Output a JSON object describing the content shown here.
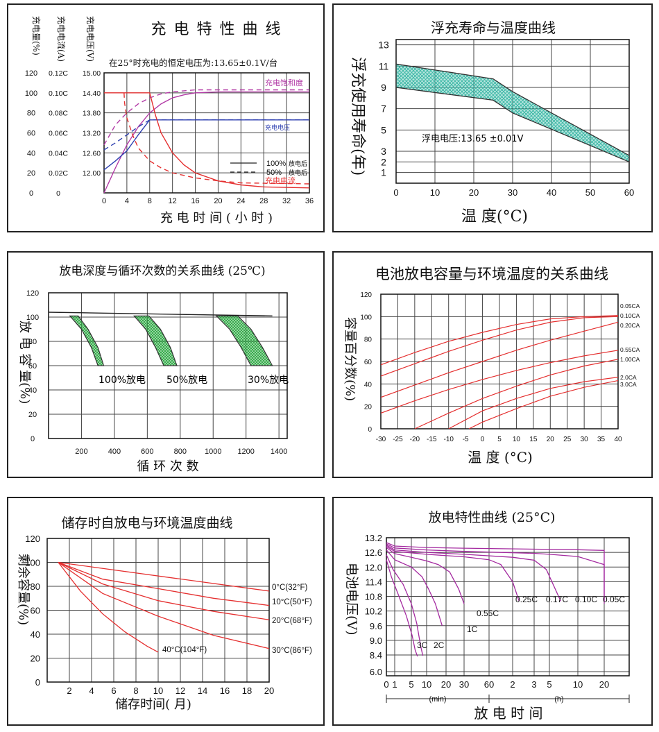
{
  "chart_data": [
    {
      "id": "charge",
      "type": "line",
      "title": "充  电  特  性  曲  线",
      "subtitle": "在25°时充电的恒定电压为:13.65±0.1V/台",
      "xlabel": "充  电  时  间  ( 小  时 )",
      "ylabels": [
        "充电量(%)",
        "充电电流(A)",
        "充电电压(V)"
      ],
      "x_ticks": [
        "0",
        "4",
        "8",
        "12",
        "16",
        "20",
        "24",
        "28",
        "32",
        "36"
      ],
      "y_ticks_quantity": [
        "120",
        "100",
        "80",
        "60",
        "40",
        "20",
        "0"
      ],
      "y_ticks_current": [
        "0.12C",
        "0.10C",
        "0.08C",
        "0.06C",
        "0.04C",
        "0.02C",
        "0"
      ],
      "y_ticks_voltage": [
        "15.00",
        "14.40",
        "13.80",
        "13.20",
        "12.60",
        "12.00",
        ""
      ],
      "xlim": [
        0,
        36
      ],
      "ylim": [
        0,
        120
      ],
      "series_labels": [
        "充电饱和度",
        "充电电压",
        "充电电流"
      ],
      "legend": [
        {
          "label": "100%",
          "note": "放电后",
          "style": "solid"
        },
        {
          "label": "50%",
          "note": "放电后",
          "style": "dashed"
        }
      ],
      "series": [
        {
          "label_index": 0,
          "color": "#b23aa6",
          "style": "solid",
          "x": [
            0,
            2,
            4,
            6,
            8,
            10,
            12,
            14,
            16,
            20,
            24,
            28,
            36
          ],
          "y": [
            0,
            25,
            48,
            66,
            80,
            89,
            95,
            98,
            100,
            101,
            101,
            101,
            101
          ]
        },
        {
          "label_index": 0,
          "color": "#b23aa6",
          "style": "dashed",
          "x": [
            0,
            1,
            2,
            4,
            6,
            8,
            10,
            12,
            14,
            16,
            20,
            24,
            36
          ],
          "y": [
            48,
            58,
            68,
            80,
            89,
            95,
            99,
            101,
            102,
            103,
            103,
            103,
            103
          ]
        },
        {
          "label_index": 1,
          "color": "#2d3fb0",
          "style": "solid",
          "x": [
            0,
            2,
            4,
            6,
            8,
            36
          ],
          "y": [
            23,
            32,
            42,
            58,
            73,
            73
          ]
        },
        {
          "label_index": 1,
          "color": "#2d3fb0",
          "style": "dashed",
          "x": [
            0,
            2,
            4,
            6,
            8,
            36
          ],
          "y": [
            43,
            50,
            58,
            66,
            73,
            73
          ]
        },
        {
          "label_index": 2,
          "color": "#e53030",
          "style": "solid",
          "x": [
            0,
            8,
            9,
            10,
            12,
            14,
            16,
            20,
            24,
            28,
            36
          ],
          "y": [
            100,
            100,
            78,
            60,
            40,
            28,
            20,
            12,
            8,
            6,
            5
          ]
        },
        {
          "label_index": 2,
          "color": "#e53030",
          "style": "dashed",
          "x": [
            3.5,
            3.6,
            4,
            5,
            6,
            8,
            10,
            12,
            16,
            20,
            24,
            36
          ],
          "y": [
            100,
            90,
            75,
            58,
            45,
            32,
            25,
            20,
            15,
            12,
            10,
            9
          ]
        }
      ]
    },
    {
      "id": "float-life",
      "type": "area",
      "title": "浮充寿命与温度曲线",
      "xlabel": "温  度(°C)",
      "ylabel": "浮充使用寿命(年)",
      "annotation": "浮电电压:13.65  ±0.01V",
      "x_ticks": [
        "0",
        "10",
        "20",
        "30",
        "40",
        "50",
        "60"
      ],
      "y_ticks": [
        {
          "label": "13",
          "value": 13
        },
        {
          "label": "11",
          "value": 11
        },
        {
          "label": "9",
          "value": 9
        },
        {
          "label": "7",
          "value": 7
        },
        {
          "label": "5",
          "value": 5
        },
        {
          "label": "3",
          "value": 3
        },
        {
          "label": "2",
          "value": 2
        },
        {
          "label": "1",
          "value": 1
        }
      ],
      "xlim": [
        0,
        60
      ],
      "ylim": [
        0,
        13.5
      ],
      "upper": {
        "x": [
          0,
          25,
          30,
          60
        ],
        "y": [
          11.2,
          9.8,
          8.6,
          2.6
        ]
      },
      "lower": {
        "x": [
          0,
          25,
          30,
          60
        ],
        "y": [
          9.0,
          7.8,
          6.6,
          2.0
        ]
      },
      "color": "#3cb8a6"
    },
    {
      "id": "cycle-life",
      "type": "area",
      "title": "放电深度与循环次数的关系曲线 (25℃)",
      "xlabel": "循  环  次  数",
      "ylabel": "放  电  容  量(%)",
      "x_ticks": [
        "200",
        "400",
        "600",
        "800",
        "1000",
        "1200",
        "1400"
      ],
      "y_ticks": [
        "120",
        "100",
        "80",
        "60",
        "40",
        "20",
        "0"
      ],
      "xlim": [
        0,
        1450
      ],
      "ylim": [
        0,
        120
      ],
      "bands": [
        {
          "label": "100%放电",
          "left": {
            "x": [
              130,
              200,
              260,
              300
            ],
            "y": [
              101,
              90,
              75,
              60
            ]
          },
          "right": {
            "x": [
              180,
              240,
              300,
              335
            ],
            "y": [
              101,
              90,
              75,
              60
            ]
          }
        },
        {
          "label": "50%放电",
          "left": {
            "x": [
              520,
              590,
              650,
              700
            ],
            "y": [
              101,
              90,
              75,
              60
            ]
          },
          "right": {
            "x": [
              610,
              680,
              740,
              780
            ],
            "y": [
              101,
              90,
              75,
              60
            ]
          }
        },
        {
          "label": "30%放电",
          "left": {
            "x": [
              1020,
              1100,
              1170,
              1230
            ],
            "y": [
              101,
              90,
              75,
              60
            ]
          },
          "right": {
            "x": [
              1150,
              1230,
              1300,
              1360
            ],
            "y": [
              101,
              90,
              75,
              60
            ]
          }
        }
      ],
      "top_line": {
        "x": [
          0,
          1360
        ],
        "y": [
          104,
          101
        ]
      },
      "color": "#2ea844"
    },
    {
      "id": "capacity-temp",
      "type": "line",
      "title": "电池放电容量与环境温度的关系曲线",
      "xlabel": "温  度  (°C)",
      "ylabel": "容量百分数(%)",
      "x_ticks": [
        "-30",
        "-25",
        "-20",
        "-15",
        "-10",
        "-5",
        "0",
        "5",
        "10",
        "15",
        "20",
        "25",
        "30",
        "35",
        "40"
      ],
      "y_ticks": [
        "120",
        "100",
        "80",
        "60",
        "40",
        "20",
        "0"
      ],
      "xlim": [
        -30,
        40
      ],
      "ylim": [
        0,
        120
      ],
      "series": [
        {
          "name": "0.05CA",
          "x": [
            -30,
            -20,
            -10,
            0,
            10,
            20,
            30,
            40
          ],
          "y": [
            57,
            68,
            78,
            86,
            93,
            98,
            100,
            101
          ]
        },
        {
          "name": "0.10CA",
          "x": [
            -30,
            -20,
            -10,
            0,
            10,
            20,
            30,
            40
          ],
          "y": [
            47,
            58,
            69,
            79,
            88,
            95,
            99,
            100
          ]
        },
        {
          "name": "0.20CA",
          "x": [
            -30,
            -20,
            -10,
            0,
            10,
            20,
            30,
            40
          ],
          "y": [
            28,
            39,
            50,
            60,
            70,
            79,
            87,
            95
          ]
        },
        {
          "name": "0.55CA",
          "x": [
            -30,
            -20,
            -10,
            0,
            10,
            20,
            30,
            40
          ],
          "y": [
            14,
            25,
            35,
            44,
            52,
            59,
            65,
            70
          ]
        },
        {
          "name": "1.00CA",
          "x": [
            -20,
            -10,
            0,
            10,
            20,
            30,
            40
          ],
          "y": [
            0,
            14,
            27,
            38,
            48,
            56,
            62
          ]
        },
        {
          "name": "2.0CA",
          "x": [
            -10,
            0,
            10,
            20,
            30,
            40
          ],
          "y": [
            0,
            16,
            27,
            36,
            42,
            46
          ]
        },
        {
          "name": "3.0CA",
          "x": [
            -4,
            0,
            10,
            20,
            30,
            40
          ],
          "y": [
            0,
            6,
            18,
            29,
            37,
            43
          ]
        }
      ],
      "color": "#e53030"
    },
    {
      "id": "self-discharge",
      "type": "line",
      "title": "储存时自放电与环境温度曲线",
      "xlabel": "储存时间( 月)",
      "ylabel": "剩余容量(%)",
      "x_ticks": [
        "2",
        "4",
        "6",
        "8",
        "10",
        "12",
        "14",
        "16",
        "18",
        "20"
      ],
      "y_ticks": [
        "120",
        "100",
        "80",
        "60",
        "40",
        "20",
        "0"
      ],
      "xlim": [
        0,
        20
      ],
      "ylim": [
        0,
        120
      ],
      "series": [
        {
          "name": "0°C(32°F)",
          "x": [
            1,
            20
          ],
          "y": [
            100,
            76
          ]
        },
        {
          "name": "10°C(50°F)",
          "x": [
            1,
            5,
            10,
            15,
            20
          ],
          "y": [
            100,
            86,
            78,
            70,
            64
          ]
        },
        {
          "name": "20°C(68°F)",
          "x": [
            1,
            5,
            10,
            15,
            20
          ],
          "y": [
            100,
            82,
            68,
            59,
            52
          ]
        },
        {
          "name": "30°C(86°F)",
          "x": [
            1,
            5,
            10,
            15,
            20
          ],
          "y": [
            100,
            74,
            55,
            39,
            28
          ]
        },
        {
          "name": "40°C(104°F)",
          "x": [
            1,
            3,
            5,
            7,
            9,
            10
          ],
          "y": [
            100,
            76,
            57,
            42,
            30,
            25
          ]
        }
      ],
      "color": "#e53030"
    },
    {
      "id": "discharge-char",
      "type": "line",
      "title": "放电特性曲线 (25°C)",
      "xlabel": "放  电  时  间",
      "ylabel": "电池电压(V)",
      "unit_min": "(min)",
      "unit_h": "(h)",
      "x_ticks": [
        "0",
        "1",
        "5",
        "10",
        "20",
        "30",
        "60",
        "2",
        "3",
        "5",
        "10",
        "20"
      ],
      "y_ticks": [
        "13.2",
        "12.6",
        "12.0",
        "11.4",
        "10.8",
        "10.2",
        "9.6",
        "9.0",
        "8.4",
        "6.0"
      ],
      "ylim": [
        6.0,
        13.2
      ],
      "series": [
        {
          "name": "0.05C",
          "x": [
            0,
            1,
            3,
            5,
            8,
            10,
            12,
            14,
            16,
            17.5,
            19.5
          ],
          "y": [
            13.0,
            12.86,
            12.8,
            12.77,
            12.73,
            12.71,
            12.68,
            12.62,
            12.45,
            11.8,
            10.5
          ]
        },
        {
          "name": "0.10C",
          "x": [
            0,
            1,
            3,
            5,
            8,
            9,
            10,
            11,
            11.8,
            12.3
          ],
          "y": [
            12.95,
            12.78,
            12.7,
            12.64,
            12.56,
            12.52,
            12.43,
            12.1,
            11.4,
            10.6
          ]
        },
        {
          "name": "0.17C",
          "x": [
            0,
            1,
            3,
            5,
            7,
            8,
            8.8,
            9.4
          ],
          "y": [
            12.9,
            12.7,
            12.6,
            12.52,
            12.4,
            12.28,
            11.9,
            10.6
          ]
        },
        {
          "name": "0.25C",
          "x": [
            0,
            1,
            3,
            5,
            6,
            6.5,
            7.0,
            7.3
          ],
          "y": [
            12.85,
            12.64,
            12.52,
            12.42,
            12.3,
            12.1,
            11.4,
            10.6
          ]
        },
        {
          "name": "0.55C",
          "x": [
            0,
            1,
            2,
            3,
            3.6,
            4.2,
            4.7,
            5.0
          ],
          "y": [
            12.8,
            12.55,
            12.4,
            12.25,
            12.1,
            11.8,
            11.1,
            10.5
          ]
        },
        {
          "name": "1C",
          "x": [
            0,
            1,
            2,
            2.7,
            3.1,
            3.45,
            3.8
          ],
          "y": [
            12.7,
            12.3,
            12.0,
            11.6,
            11.1,
            10.5,
            9.6
          ]
        },
        {
          "name": "2C",
          "x": [
            0,
            0.8,
            1.5,
            2.0,
            2.35,
            2.6,
            2.75
          ],
          "y": [
            12.5,
            11.9,
            11.3,
            10.5,
            9.7,
            8.8,
            8.3
          ]
        },
        {
          "name": "3C",
          "x": [
            0,
            0.6,
            1.2,
            1.7,
            2.05,
            2.25,
            2.4
          ],
          "y": [
            12.3,
            11.6,
            10.9,
            10.0,
            9.2,
            8.6,
            8.2
          ]
        }
      ],
      "color": "#a42aa0"
    }
  ]
}
